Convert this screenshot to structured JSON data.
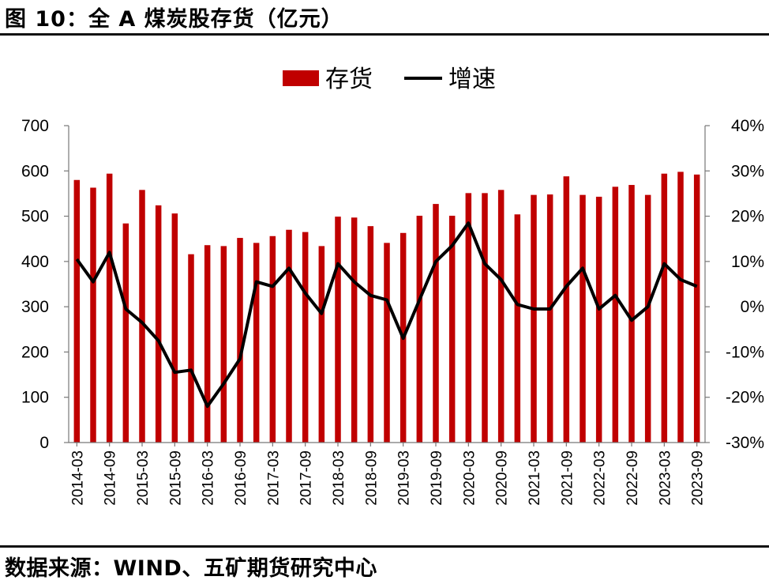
{
  "title": "图 10：全 A 煤炭股存货（亿元）",
  "source": "数据来源：WIND、五矿期货研究中心",
  "chart_data": {
    "type": "bar",
    "categories": [
      "2014-03",
      "2014-06",
      "2014-09",
      "2014-12",
      "2015-03",
      "2015-06",
      "2015-09",
      "2015-12",
      "2016-03",
      "2016-06",
      "2016-09",
      "2016-12",
      "2017-03",
      "2017-06",
      "2017-09",
      "2017-12",
      "2018-03",
      "2018-06",
      "2018-09",
      "2018-12",
      "2019-03",
      "2019-06",
      "2019-09",
      "2019-12",
      "2020-03",
      "2020-06",
      "2020-09",
      "2020-12",
      "2021-03",
      "2021-06",
      "2021-09",
      "2021-12",
      "2022-03",
      "2022-06",
      "2022-09",
      "2022-12",
      "2023-03",
      "2023-06",
      "2023-09"
    ],
    "x_tick_labels": [
      "2014-03",
      "2014-09",
      "2015-03",
      "2015-09",
      "2016-03",
      "2016-09",
      "2017-03",
      "2017-09",
      "2018-03",
      "2018-09",
      "2019-03",
      "2019-09",
      "2020-03",
      "2020-09",
      "2021-03",
      "2021-09",
      "2022-03",
      "2022-09",
      "2023-03",
      "2023-09"
    ],
    "series": [
      {
        "name": "存货",
        "type": "bar",
        "axis": "left",
        "color": "#c00000",
        "values": [
          580,
          563,
          594,
          484,
          558,
          524,
          506,
          416,
          436,
          434,
          452,
          441,
          456,
          470,
          465,
          434,
          499,
          497,
          478,
          441,
          463,
          501,
          527,
          501,
          551,
          551,
          558,
          504,
          547,
          548,
          588,
          547,
          543,
          565,
          569,
          547,
          594,
          598,
          592
        ]
      },
      {
        "name": "增速",
        "type": "line",
        "axis": "right",
        "color": "#000000",
        "unit": "%",
        "values": [
          10.5,
          5.5,
          12,
          -0.5,
          -3.5,
          -7.5,
          -14.5,
          -14,
          -22,
          -17,
          -11.5,
          5.5,
          4.5,
          8.5,
          3,
          -1.5,
          9.5,
          5.5,
          2.5,
          1.5,
          -7,
          1.5,
          10,
          13.5,
          18.5,
          9.5,
          6,
          0.5,
          -0.5,
          -0.5,
          4.5,
          8.5,
          -0.5,
          2.5,
          -3,
          0,
          9.5,
          6,
          4.5
        ]
      }
    ],
    "y_left": {
      "min": 0,
      "max": 700,
      "ticks": [
        "0",
        "100",
        "200",
        "300",
        "400",
        "500",
        "600",
        "700"
      ]
    },
    "y_right": {
      "min": -30,
      "max": 40,
      "ticks": [
        "-30%",
        "-20%",
        "-10%",
        "0%",
        "10%",
        "20%",
        "30%",
        "40%"
      ]
    },
    "legend": {
      "position": "top-center",
      "items": [
        "存货",
        "增速"
      ]
    },
    "grid": false
  }
}
